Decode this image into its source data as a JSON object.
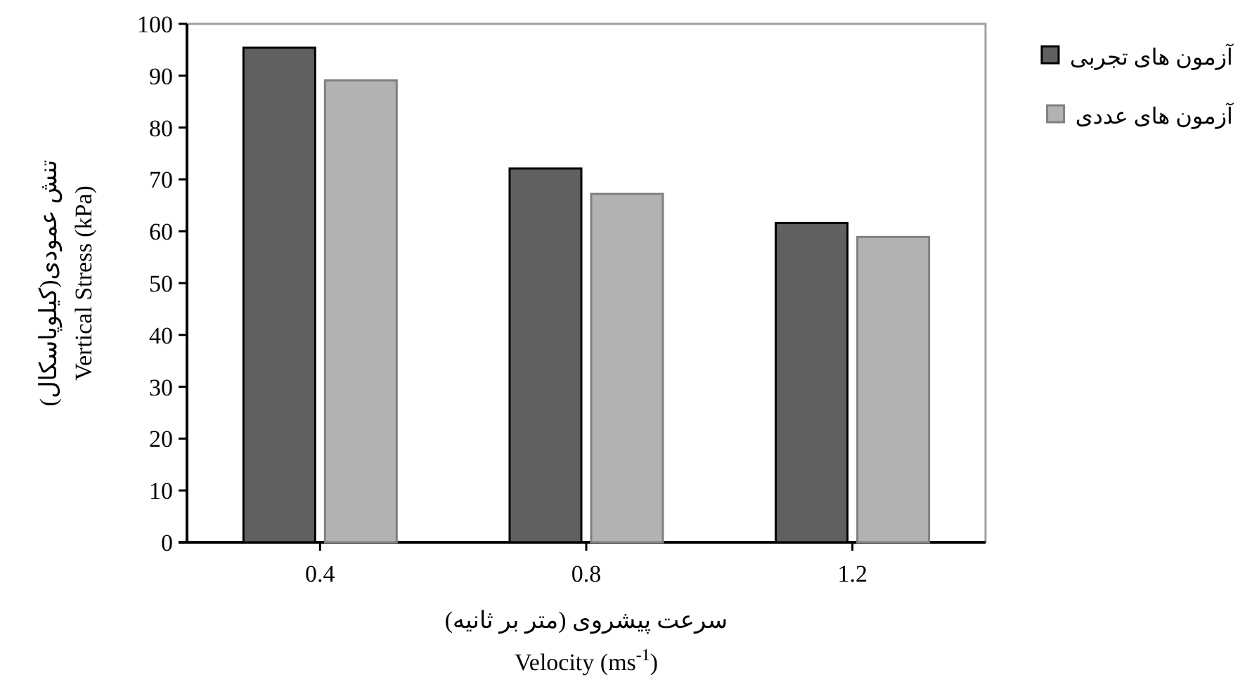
{
  "chart_data": {
    "type": "bar",
    "xlabel": "سرعت پیشروی (متر بر ثانیه)\nVelocity (ms$^{-1}$)",
    "ylabel": "تنش عمودی(کیلوپاسکال)\nVertical Stress (kPa)",
    "categories": [
      "0.4",
      "0.8",
      "1.2"
    ],
    "series": [
      {
        "name": "آزمون های تجربی",
        "color": "#606060",
        "values": [
          95.4,
          72.1,
          61.6
        ]
      },
      {
        "name": "آزمون های عددی",
        "color": "#b2b2b2",
        "values": [
          89.1,
          67.2,
          58.9
        ]
      }
    ],
    "ylim": [
      0,
      100
    ],
    "yticks": [
      0,
      10,
      20,
      30,
      40,
      50,
      60,
      70,
      80,
      90,
      100
    ],
    "legend": "right",
    "grid": false
  }
}
